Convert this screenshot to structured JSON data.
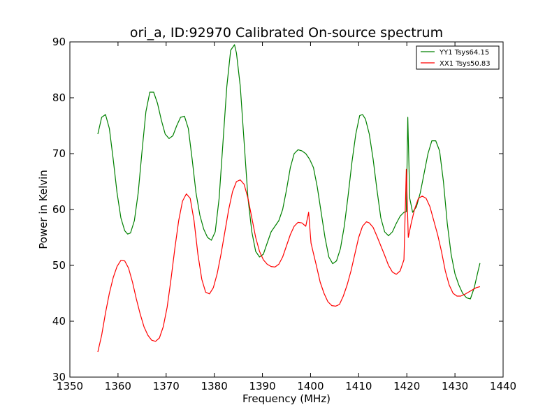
{
  "chart_data": {
    "type": "line",
    "title": "ori_a, ID:92970 Calibrated On-source spectrum",
    "xlabel": "Frequency (MHz)",
    "ylabel": "Power in Kelvin",
    "xlim": [
      1350,
      1440
    ],
    "ylim": [
      30,
      90
    ],
    "xticks": [
      "1350",
      "1360",
      "1370",
      "1380",
      "1390",
      "1400",
      "1410",
      "1420",
      "1430",
      "1440"
    ],
    "yticks": [
      "30",
      "40",
      "50",
      "60",
      "70",
      "80",
      "90"
    ],
    "grid": false,
    "legend_position": "top-right",
    "series": [
      {
        "name": "YY1 Tsys64.15",
        "color": "#008000",
        "x": [
          1355.8,
          1356.6,
          1357.4,
          1358.2,
          1359.0,
          1359.8,
          1360.6,
          1361.4,
          1362.0,
          1362.6,
          1363.4,
          1364.2,
          1365.0,
          1365.8,
          1366.6,
          1367.4,
          1368.2,
          1369.0,
          1369.8,
          1370.6,
          1371.4,
          1372.2,
          1373.0,
          1373.8,
          1374.6,
          1375.4,
          1376.2,
          1377.0,
          1377.8,
          1378.6,
          1379.4,
          1380.2,
          1381.0,
          1381.8,
          1382.6,
          1383.4,
          1384.2,
          1384.6,
          1385.4,
          1386.2,
          1387.0,
          1387.8,
          1388.6,
          1389.4,
          1390.2,
          1391.0,
          1391.8,
          1392.6,
          1393.4,
          1394.2,
          1395.0,
          1395.8,
          1396.6,
          1397.4,
          1398.2,
          1399.0,
          1399.8,
          1400.6,
          1401.4,
          1402.2,
          1403.0,
          1403.8,
          1404.6,
          1405.4,
          1406.2,
          1407.0,
          1407.8,
          1408.6,
          1409.4,
          1410.2,
          1410.8,
          1411.4,
          1412.2,
          1413.0,
          1413.8,
          1414.6,
          1415.4,
          1416.2,
          1417.0,
          1417.8,
          1418.6,
          1419.4,
          1419.9,
          1420.2,
          1420.6,
          1421.2,
          1422.0,
          1422.8,
          1423.6,
          1424.4,
          1425.2,
          1426.0,
          1426.8,
          1427.6,
          1428.4,
          1429.2,
          1430.0,
          1430.8,
          1431.6,
          1432.4,
          1433.2,
          1434.0,
          1434.8,
          1435.2
        ],
        "y": [
          73.5,
          76.5,
          77.0,
          74.5,
          69.0,
          63.0,
          58.5,
          56.2,
          55.6,
          55.8,
          58.0,
          63.0,
          70.5,
          77.5,
          81.0,
          81.0,
          79.0,
          76.0,
          73.5,
          72.7,
          73.2,
          75.0,
          76.5,
          76.7,
          74.5,
          69.0,
          63.0,
          59.0,
          56.5,
          55.0,
          54.5,
          56.0,
          62.0,
          72.0,
          82.0,
          88.5,
          89.5,
          88.0,
          82.0,
          72.0,
          62.0,
          56.0,
          52.5,
          51.5,
          52.0,
          54.0,
          56.0,
          57.0,
          58.0,
          60.0,
          63.5,
          67.5,
          70.0,
          70.7,
          70.5,
          70.0,
          69.0,
          67.5,
          64.0,
          59.5,
          55.0,
          51.5,
          50.3,
          50.8,
          53.0,
          57.0,
          62.5,
          68.5,
          73.5,
          76.8,
          77.0,
          76.2,
          73.5,
          69.0,
          63.5,
          58.5,
          56.0,
          55.3,
          56.0,
          57.5,
          58.8,
          59.5,
          59.6,
          76.5,
          62.0,
          59.5,
          60.5,
          63.0,
          66.5,
          70.0,
          72.3,
          72.3,
          70.5,
          65.0,
          57.5,
          52.0,
          48.5,
          46.5,
          45.0,
          44.2,
          44.0,
          46.0,
          49.0,
          50.4
        ]
      },
      {
        "name": "XX1 Tsys50.83",
        "color": "#ff0000",
        "x": [
          1355.8,
          1356.6,
          1357.4,
          1358.2,
          1359.0,
          1359.8,
          1360.6,
          1361.4,
          1362.2,
          1363.0,
          1363.8,
          1364.6,
          1365.4,
          1366.2,
          1367.0,
          1367.8,
          1368.6,
          1369.4,
          1370.2,
          1371.0,
          1371.8,
          1372.6,
          1373.4,
          1374.2,
          1375.0,
          1375.8,
          1376.6,
          1377.4,
          1378.2,
          1379.0,
          1379.8,
          1380.6,
          1381.4,
          1382.2,
          1383.0,
          1383.8,
          1384.6,
          1385.4,
          1386.2,
          1387.0,
          1387.8,
          1388.6,
          1389.4,
          1390.2,
          1391.0,
          1391.8,
          1392.6,
          1393.4,
          1394.2,
          1395.0,
          1395.8,
          1396.6,
          1397.4,
          1398.2,
          1399.0,
          1399.6,
          1400.1,
          1400.5,
          1401.2,
          1402.0,
          1402.8,
          1403.6,
          1404.4,
          1405.2,
          1406.0,
          1406.8,
          1407.6,
          1408.4,
          1409.2,
          1410.0,
          1410.8,
          1411.6,
          1412.2,
          1413.0,
          1413.8,
          1414.6,
          1415.4,
          1416.2,
          1417.0,
          1417.8,
          1418.6,
          1419.4,
          1419.9,
          1420.3,
          1420.9,
          1421.6,
          1422.4,
          1423.2,
          1424.0,
          1424.8,
          1425.6,
          1426.4,
          1427.2,
          1428.0,
          1428.8,
          1429.6,
          1430.4,
          1431.2,
          1432.0,
          1432.8,
          1433.6,
          1434.4,
          1435.2
        ],
        "y": [
          34.5,
          37.5,
          41.5,
          45.0,
          47.8,
          49.8,
          50.9,
          50.8,
          49.5,
          47.0,
          44.0,
          41.3,
          39.0,
          37.5,
          36.6,
          36.4,
          37.0,
          39.0,
          42.5,
          47.5,
          53.0,
          58.0,
          61.5,
          62.8,
          62.0,
          58.0,
          52.0,
          47.5,
          45.2,
          44.9,
          46.0,
          48.5,
          52.0,
          56.0,
          60.0,
          63.2,
          65.0,
          65.3,
          64.5,
          62.0,
          58.5,
          55.0,
          52.5,
          51.0,
          50.2,
          49.8,
          49.7,
          50.2,
          51.5,
          53.5,
          55.5,
          57.0,
          57.7,
          57.6,
          57.0,
          59.5,
          54.0,
          52.5,
          50.0,
          47.0,
          45.0,
          43.5,
          42.8,
          42.7,
          43.0,
          44.5,
          46.5,
          49.0,
          52.0,
          55.0,
          57.0,
          57.8,
          57.6,
          56.8,
          55.2,
          53.5,
          51.8,
          50.0,
          48.8,
          48.4,
          49.0,
          51.0,
          67.2,
          55.0,
          57.5,
          60.0,
          62.0,
          62.4,
          62.0,
          60.5,
          58.0,
          55.5,
          52.5,
          49.0,
          46.5,
          45.0,
          44.5,
          44.5,
          44.8,
          45.2,
          45.6,
          46.0,
          46.2
        ]
      }
    ]
  }
}
